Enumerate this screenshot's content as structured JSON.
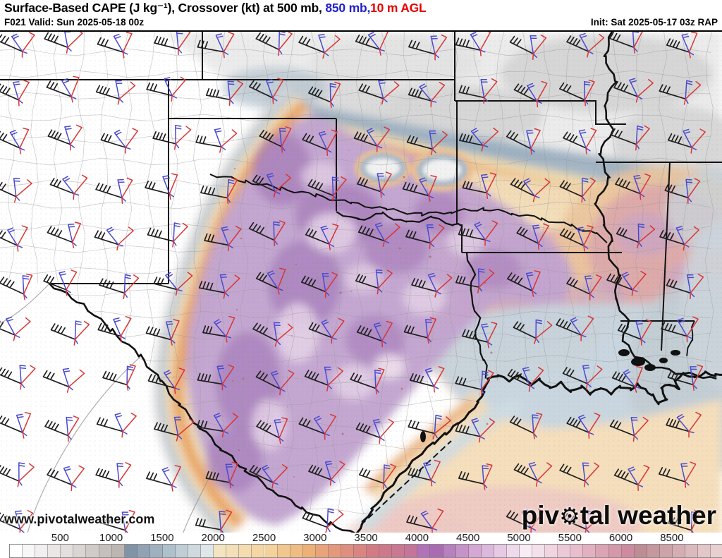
{
  "header": {
    "title_main": "Surface-Based CAPE (J kg⁻¹), Crossover (kt) at 500 mb, ",
    "title_850": "850 mb,",
    "title_10m": "10 m AGL",
    "valid_label": "F021 Valid: Sun 2025-05-18 00z",
    "init_label": "Init: Sat 2025-05-17 03z RAP"
  },
  "map": {
    "watermark": "www.pivotalweather.com",
    "logo": {
      "pre": "piv",
      "gear": "⚙",
      "post": "tal weather"
    },
    "wind_layers": [
      {
        "name": "500 mb crossover wind",
        "color": "#1f1f1f"
      },
      {
        "name": "850 mb crossover wind",
        "color": "#4a4ad0"
      },
      {
        "name": "10 m AGL crossover wind",
        "color": "#d93535"
      }
    ]
  },
  "colorbar": {
    "units": "J kg⁻¹",
    "ticks": [
      "500",
      "1000",
      "1500",
      "2000",
      "2500",
      "3000",
      "3500",
      "4000",
      "4500",
      "5000",
      "5500",
      "6000",
      "8500"
    ],
    "stops": [
      [
        0,
        "#ffffff"
      ],
      [
        500,
        "#e3dfde"
      ],
      [
        1000,
        "#bcb5b2"
      ],
      [
        1125,
        "#8094a8"
      ],
      [
        1500,
        "#aec0cb"
      ],
      [
        1875,
        "#e0e7ea"
      ],
      [
        2000,
        "#f3e5c2"
      ],
      [
        2500,
        "#f4d29b"
      ],
      [
        2875,
        "#edb175"
      ],
      [
        3000,
        "#e9a37a"
      ],
      [
        3500,
        "#d37b84"
      ],
      [
        3875,
        "#c57599"
      ],
      [
        4000,
        "#b173b8"
      ],
      [
        4125,
        "#a96cb2"
      ],
      [
        4500,
        "#d4a7d5"
      ],
      [
        5000,
        "#f8ebf4"
      ],
      [
        5500,
        "#e8becc"
      ],
      [
        6000,
        "#ce8a9e"
      ],
      [
        6625,
        "#bc8d94"
      ],
      [
        7875,
        "#cba3a8"
      ],
      [
        8500,
        "#d4aeb3"
      ],
      [
        9750,
        "#e2c6c8"
      ],
      [
        10375,
        "#e8d0d1"
      ]
    ]
  }
}
